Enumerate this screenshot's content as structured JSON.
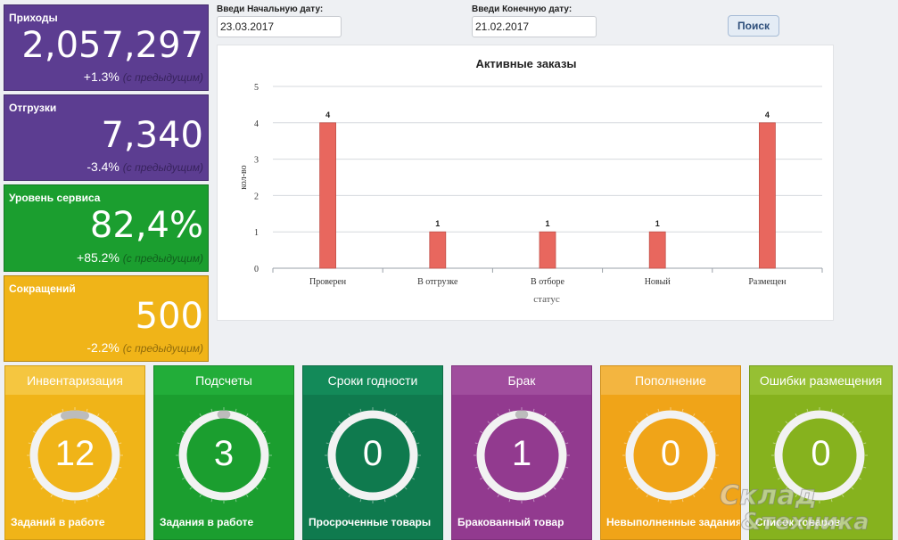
{
  "kpis": [
    {
      "title": "Приходы",
      "value": "2,057,297",
      "change": "+1.3%",
      "compare": "(с предыдущим)",
      "color": "#5c3d91"
    },
    {
      "title": "Отгрузки",
      "value": "7,340",
      "change": "-3.4%",
      "compare": "(с предыдущим)",
      "color": "#5c3d91"
    },
    {
      "title": "Уровень сервиса",
      "value": "82,4%",
      "change": "+85.2%",
      "compare": "(с предыдущим)",
      "color": "#1b9e2f"
    },
    {
      "title": "Сокращений",
      "value": "500",
      "change": "-2.2%",
      "compare": "(с предыдущим)",
      "color": "#f0b418"
    }
  ],
  "filters": {
    "start_label": "Введи  Начальную  дату:",
    "start_value": "23.03.2017",
    "end_label": "Введи  Конечную  дату:",
    "end_value": "21.02.2017",
    "search_label": "Поиск"
  },
  "chart_data": {
    "type": "bar",
    "title": "Активные заказы",
    "xlabel": "статус",
    "ylabel": "кол-во",
    "categories": [
      "Проверен",
      "В отгрузке",
      "В отборе",
      "Новый",
      "Размещен"
    ],
    "values": [
      4,
      1,
      1,
      1,
      4
    ],
    "ylim": [
      0,
      5
    ],
    "yticks": [
      "0",
      "1",
      "2",
      "3",
      "4",
      "5"
    ],
    "grid": true,
    "bar_color": "#e8675e"
  },
  "tiles": [
    {
      "title": "Инвентаризация",
      "value": "12",
      "footer": "Заданий в работе",
      "color": "#f0b418",
      "progress": 0.08
    },
    {
      "title": "Подсчеты",
      "value": "3",
      "footer": "Задания в работе",
      "color": "#1b9e2f",
      "progress": 0.02
    },
    {
      "title": "Сроки годности",
      "value": "0",
      "footer": "Просроченные товары",
      "color": "#0f7a4e",
      "progress": 0
    },
    {
      "title": "Брак",
      "value": "1",
      "footer": "Бракованный товар",
      "color": "#923a8f",
      "progress": 0.01
    },
    {
      "title": "Пополнение",
      "value": "0",
      "footer": "Невыполненные задания",
      "color": "#f0a418",
      "progress": 0
    },
    {
      "title": "Ошибки размещения",
      "value": "0",
      "footer": "Список товаров",
      "color": "#86b21e",
      "progress": 0
    }
  ],
  "watermark": {
    "line1": "Склад",
    "line2": "&техника"
  }
}
